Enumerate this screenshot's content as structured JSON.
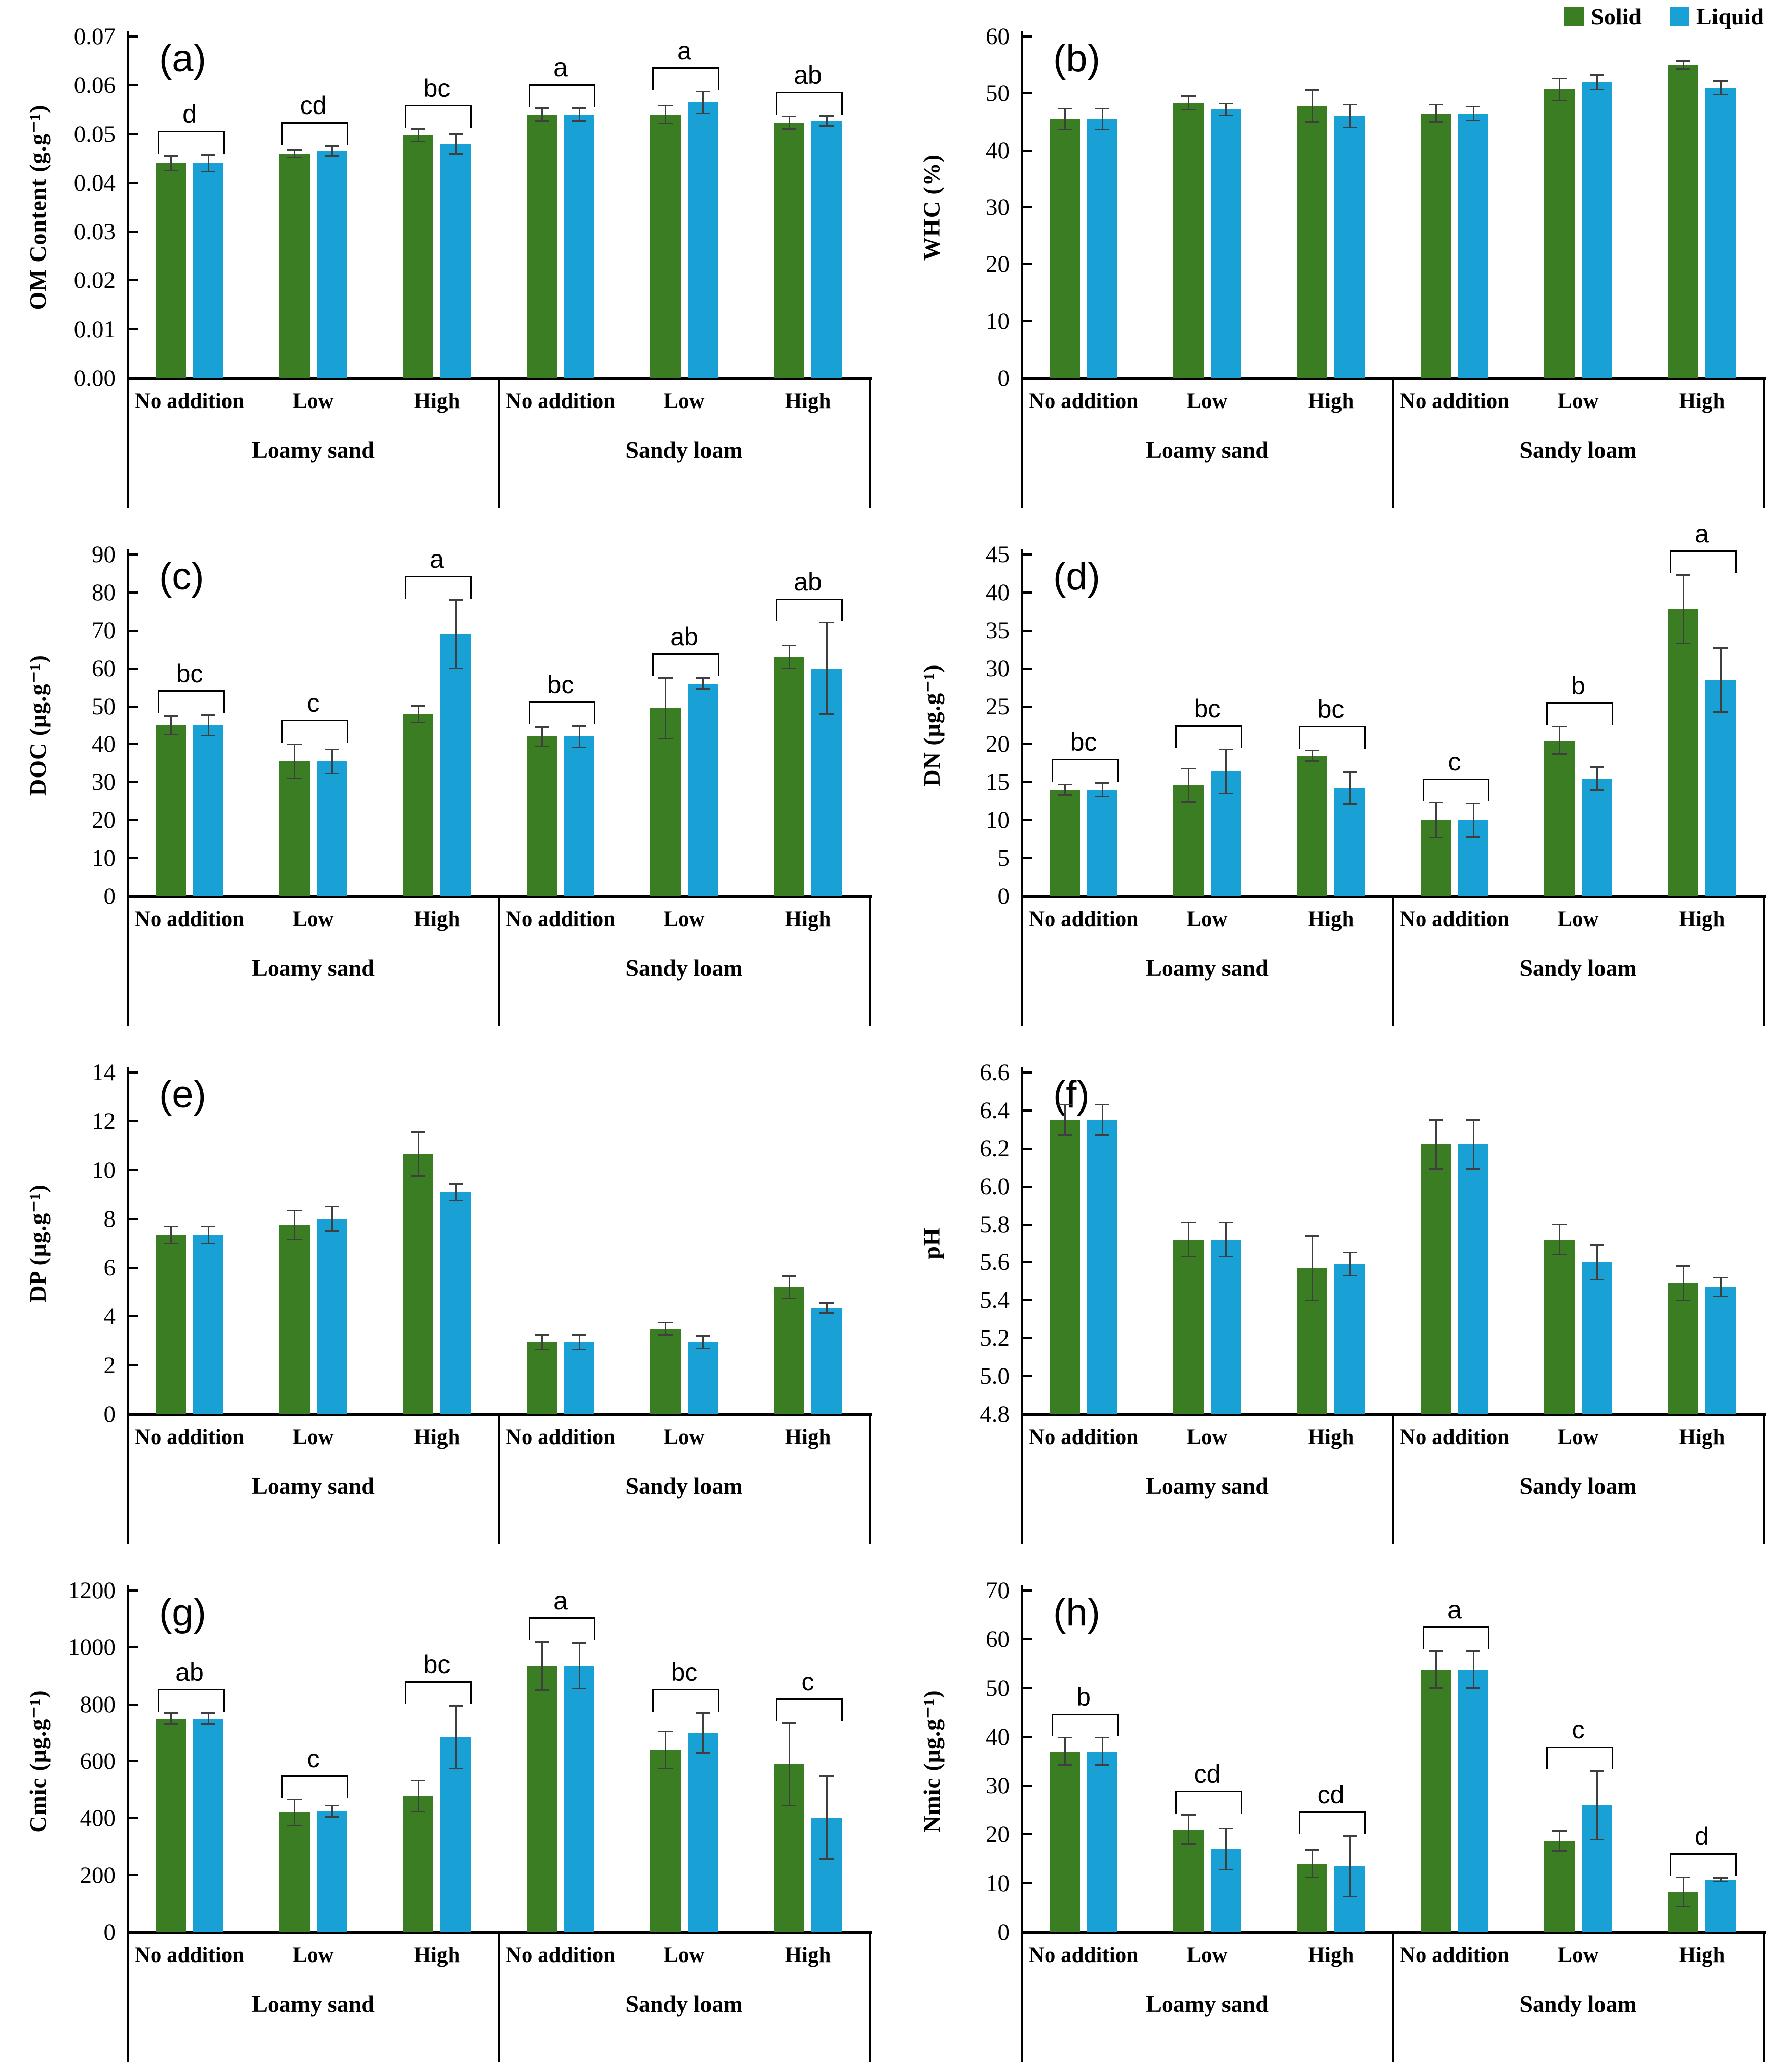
{
  "legend": {
    "solid_label": "Solid",
    "liquid_label": "Liquid"
  },
  "colors": {
    "solid": "#3B7D22",
    "liquid": "#19A0D5",
    "error": "#3f3f3f"
  },
  "categories": {
    "treatments": [
      "No addition",
      "Low",
      "High"
    ],
    "groups": [
      "Loamy sand",
      "Sandy loam"
    ]
  },
  "chart_data": [
    {
      "id": "a",
      "type": "bar",
      "panel_label": "(a)",
      "ylabel": "OM Content (g.g⁻¹)",
      "ymin": 0,
      "ymax": 0.07,
      "ystep": 0.01,
      "decimals": 2,
      "show_legend": false,
      "categories": [
        "No addition",
        "Low",
        "High",
        "No addition",
        "Low",
        "High"
      ],
      "series": [
        {
          "name": "Solid",
          "values": [
            0.044,
            0.046,
            0.0497,
            0.054,
            0.054,
            0.0523
          ],
          "errors": [
            0.0015,
            0.0008,
            0.0013,
            0.0013,
            0.0018,
            0.0013
          ]
        },
        {
          "name": "Liquid",
          "values": [
            0.044,
            0.0465,
            0.048,
            0.054,
            0.0565,
            0.0527
          ],
          "errors": [
            0.0017,
            0.001,
            0.002,
            0.0013,
            0.0022,
            0.001
          ]
        }
      ],
      "letters": [
        "d",
        "cd",
        "bc",
        "a",
        "a",
        "ab"
      ]
    },
    {
      "id": "b",
      "type": "bar",
      "panel_label": "(b)",
      "ylabel": "WHC (%)",
      "ymin": 0,
      "ymax": 60,
      "ystep": 10,
      "decimals": 0,
      "show_legend": true,
      "categories": [
        "No addition",
        "Low",
        "High",
        "No addition",
        "Low",
        "High"
      ],
      "series": [
        {
          "name": "Solid",
          "values": [
            45.5,
            48.3,
            47.8,
            46.5,
            50.7,
            55.0
          ],
          "errors": [
            1.8,
            1.2,
            2.8,
            1.5,
            2.0,
            0.7
          ]
        },
        {
          "name": "Liquid",
          "values": [
            45.5,
            47.2,
            46.0,
            46.5,
            52.0,
            51.0
          ],
          "errors": [
            1.8,
            1.0,
            2.0,
            1.2,
            1.3,
            1.2
          ]
        }
      ],
      "letters": null
    },
    {
      "id": "c",
      "type": "bar",
      "panel_label": "(c)",
      "ylabel": "DOC (μg.g⁻¹)",
      "ymin": 0,
      "ymax": 90,
      "ystep": 10,
      "decimals": 0,
      "show_legend": false,
      "categories": [
        "No addition",
        "Low",
        "High",
        "No addition",
        "Low",
        "High"
      ],
      "series": [
        {
          "name": "Solid",
          "values": [
            45,
            35.5,
            48,
            42,
            49.5,
            63
          ],
          "errors": [
            2.5,
            4.5,
            2.2,
            2.5,
            8.0,
            3.0
          ]
        },
        {
          "name": "Liquid",
          "values": [
            45,
            35.5,
            69,
            42,
            56,
            60
          ],
          "errors": [
            2.8,
            3.2,
            9.0,
            2.8,
            1.5,
            12.0
          ]
        }
      ],
      "letters": [
        "bc",
        "c",
        "a",
        "bc",
        "ab",
        "ab"
      ]
    },
    {
      "id": "d",
      "type": "bar",
      "panel_label": "(d)",
      "ylabel": "DN (μg.g⁻¹)",
      "ymin": 0,
      "ymax": 45,
      "ystep": 5,
      "decimals": 0,
      "show_legend": false,
      "categories": [
        "No addition",
        "Low",
        "High",
        "No addition",
        "Low",
        "High"
      ],
      "series": [
        {
          "name": "Solid",
          "values": [
            14.0,
            14.6,
            18.5,
            10.0,
            20.5,
            37.8
          ],
          "errors": [
            0.7,
            2.2,
            0.7,
            2.3,
            1.8,
            4.5
          ]
        },
        {
          "name": "Liquid",
          "values": [
            14.0,
            16.4,
            14.2,
            10.0,
            15.5,
            28.5
          ],
          "errors": [
            0.9,
            2.9,
            2.1,
            2.2,
            1.5,
            4.2
          ]
        }
      ],
      "letters": [
        "bc",
        "bc",
        "bc",
        "c",
        "b",
        "a"
      ]
    },
    {
      "id": "e",
      "type": "bar",
      "panel_label": "(e)",
      "ylabel": "DP (μg.g⁻¹)",
      "ymin": 0,
      "ymax": 14,
      "ystep": 2,
      "decimals": 0,
      "show_legend": false,
      "categories": [
        "No addition",
        "Low",
        "High",
        "No addition",
        "Low",
        "High"
      ],
      "series": [
        {
          "name": "Solid",
          "values": [
            7.35,
            7.75,
            10.65,
            2.95,
            3.5,
            5.2
          ],
          "errors": [
            0.35,
            0.6,
            0.9,
            0.3,
            0.25,
            0.45
          ]
        },
        {
          "name": "Liquid",
          "values": [
            7.35,
            8.0,
            9.1,
            2.95,
            2.95,
            4.35
          ],
          "errors": [
            0.35,
            0.5,
            0.35,
            0.3,
            0.25,
            0.2
          ]
        }
      ],
      "letters": null
    },
    {
      "id": "f",
      "type": "bar",
      "panel_label": "(f)",
      "ylabel": "pH",
      "ymin": 4.8,
      "ymax": 6.6,
      "ystep": 0.2,
      "decimals": 1,
      "show_legend": false,
      "categories": [
        "No addition",
        "Low",
        "High",
        "No addition",
        "Low",
        "High"
      ],
      "series": [
        {
          "name": "Solid",
          "values": [
            6.35,
            5.72,
            5.57,
            6.22,
            5.72,
            5.49
          ],
          "errors": [
            0.08,
            0.09,
            0.17,
            0.13,
            0.08,
            0.09
          ]
        },
        {
          "name": "Liquid",
          "values": [
            6.35,
            5.72,
            5.59,
            6.22,
            5.6,
            5.47
          ],
          "errors": [
            0.08,
            0.09,
            0.06,
            0.13,
            0.09,
            0.05
          ]
        }
      ],
      "letters": null
    },
    {
      "id": "g",
      "type": "bar",
      "panel_label": "(g)",
      "ylabel": "Cmic (μg.g⁻¹)",
      "ymin": 0,
      "ymax": 1200,
      "ystep": 200,
      "decimals": 0,
      "show_legend": false,
      "categories": [
        "No addition",
        "Low",
        "High",
        "No addition",
        "Low",
        "High"
      ],
      "series": [
        {
          "name": "Solid",
          "values": [
            750,
            420,
            478,
            935,
            640,
            590
          ],
          "errors": [
            20,
            45,
            55,
            85,
            65,
            145
          ]
        },
        {
          "name": "Liquid",
          "values": [
            750,
            425,
            685,
            935,
            700,
            403
          ],
          "errors": [
            20,
            20,
            110,
            80,
            70,
            145
          ]
        }
      ],
      "letters": [
        "ab",
        "c",
        "bc",
        "a",
        "bc",
        "c"
      ]
    },
    {
      "id": "h",
      "type": "bar",
      "panel_label": "(h)",
      "ylabel": "Nmic (μg.g⁻¹)",
      "ymin": 0,
      "ymax": 70,
      "ystep": 10,
      "decimals": 0,
      "show_legend": false,
      "categories": [
        "No addition",
        "Low",
        "High",
        "No addition",
        "Low",
        "High"
      ],
      "series": [
        {
          "name": "Solid",
          "values": [
            37.0,
            21.0,
            14.0,
            53.8,
            18.7,
            8.2
          ],
          "errors": [
            2.8,
            3.0,
            2.8,
            3.8,
            2.0,
            3.0
          ]
        },
        {
          "name": "Liquid",
          "values": [
            37.0,
            17.0,
            13.5,
            53.8,
            26.0,
            10.7
          ],
          "errors": [
            2.8,
            4.2,
            6.2,
            3.8,
            7.0,
            0.4
          ]
        }
      ],
      "letters": [
        "b",
        "cd",
        "cd",
        "a",
        "c",
        "d"
      ]
    }
  ]
}
